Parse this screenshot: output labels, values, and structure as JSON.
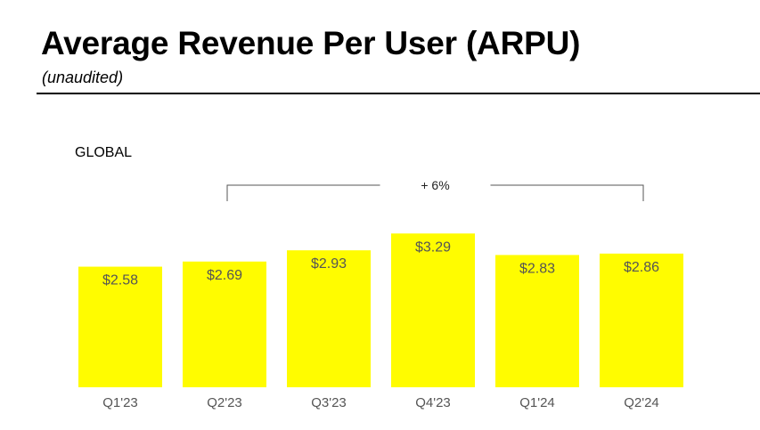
{
  "header": {
    "title": "Average Revenue Per User (ARPU)",
    "subtitle": "(unaudited)"
  },
  "chart_data": {
    "type": "bar",
    "title": "Average Revenue Per User (ARPU)",
    "subtitle": "(unaudited)",
    "region": "GLOBAL",
    "categories": [
      "Q1'23",
      "Q2'23",
      "Q3'23",
      "Q4'23",
      "Q1'24",
      "Q2'24"
    ],
    "values": [
      2.58,
      2.69,
      2.93,
      3.29,
      2.83,
      2.86
    ],
    "value_labels": [
      "$2.58",
      "$2.69",
      "$2.93",
      "$3.29",
      "$2.83",
      "$2.86"
    ],
    "xlabel": "",
    "ylabel": "",
    "annotation": {
      "text": "+ 6%",
      "from_category": "Q2'23",
      "to_category": "Q2'24"
    },
    "grid": false,
    "legend": "none",
    "colors": {
      "bar": "#FFFC00",
      "value_text": "#555555",
      "tick_text": "#555555",
      "bracket": "#555555"
    }
  }
}
